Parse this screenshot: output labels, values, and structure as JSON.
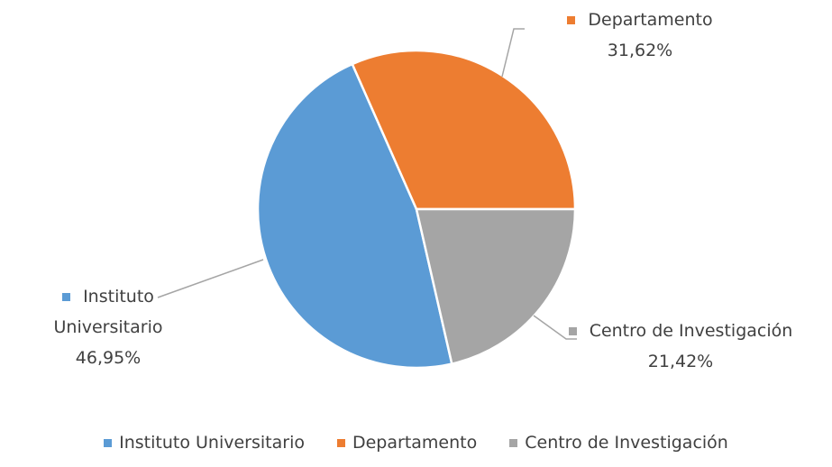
{
  "chart_data": {
    "type": "pie",
    "categories": [
      "Instituto Universitario",
      "Departamento",
      "Centro de Investigación"
    ],
    "values": [
      46.95,
      31.62,
      21.42
    ],
    "value_labels": [
      "46,95%",
      "31,62%",
      "21,42%"
    ],
    "colors": [
      "#5b9bd5",
      "#ed7d31",
      "#a5a5a5"
    ],
    "legend": "bottom"
  }
}
